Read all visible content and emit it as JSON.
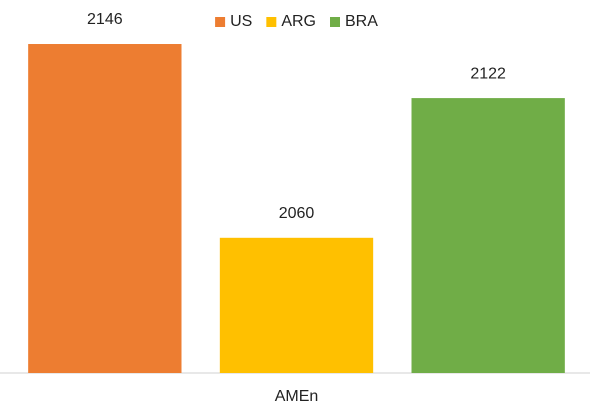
{
  "chart_data": {
    "type": "bar",
    "categories": [
      "AMEn"
    ],
    "series": [
      {
        "name": "US",
        "color": "#ed7d31",
        "values": [
          2146
        ]
      },
      {
        "name": "ARG",
        "color": "#ffc000",
        "values": [
          2060
        ]
      },
      {
        "name": "BRA",
        "color": "#70ad47",
        "values": [
          2122
        ]
      }
    ],
    "ylim": [
      2000,
      2150
    ],
    "legend": "top",
    "data_labels": true
  }
}
